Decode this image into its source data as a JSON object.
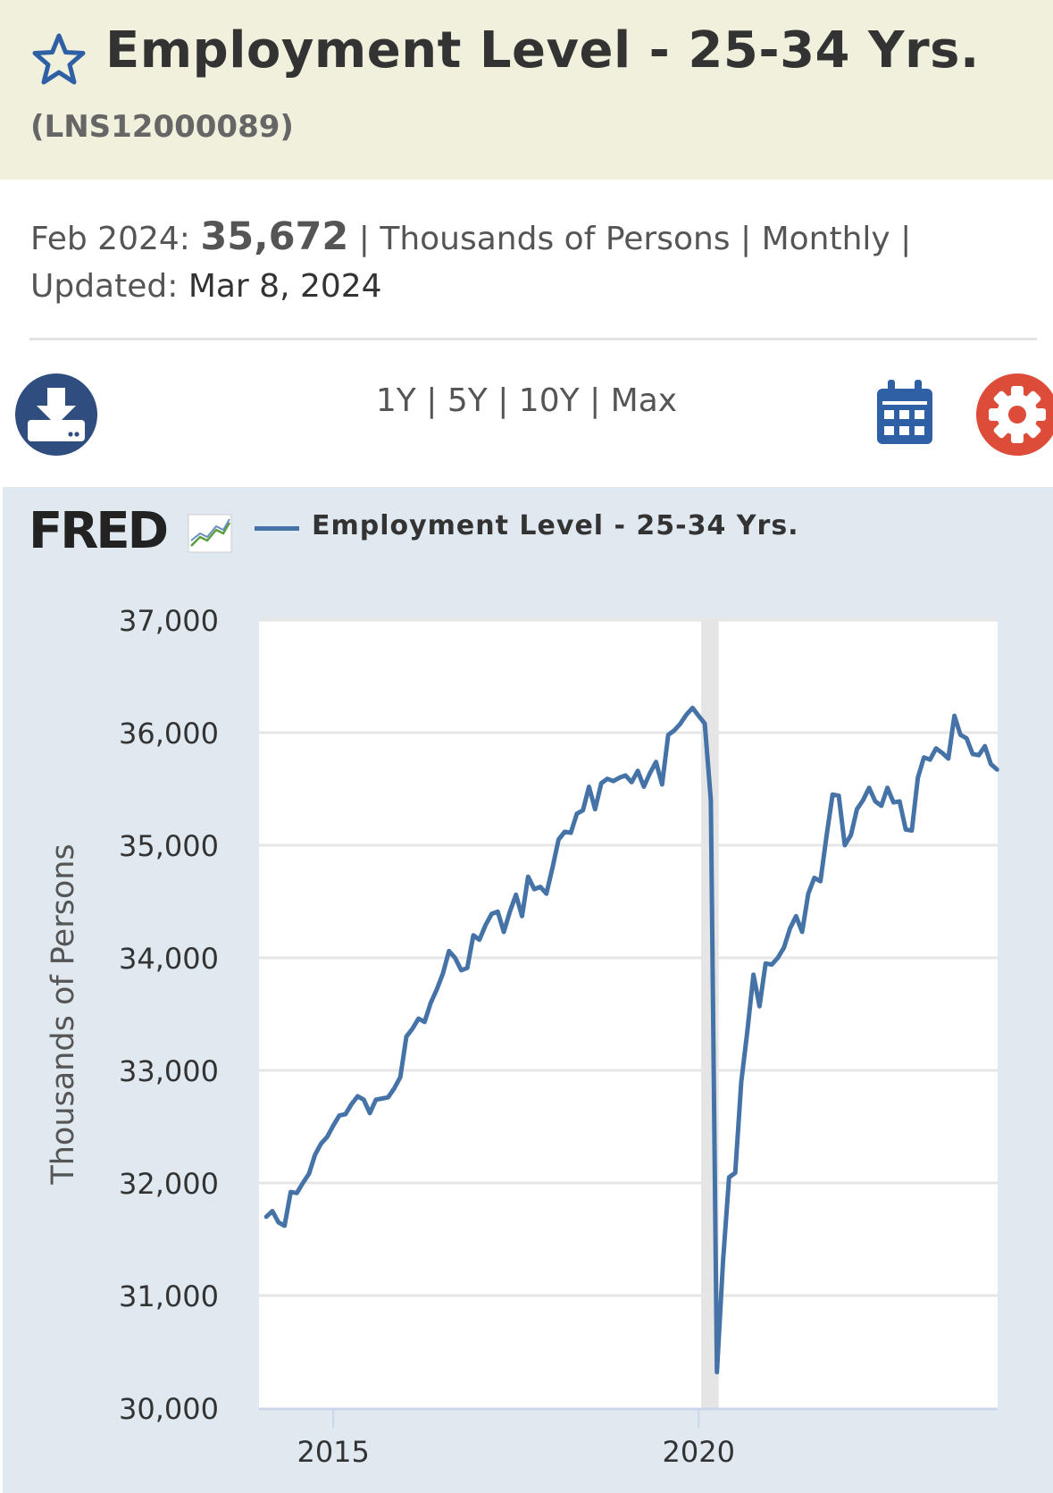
{
  "header": {
    "title": "Employment Level - 25-34 Yrs.",
    "series_id": "(LNS12000089)"
  },
  "summary": {
    "period_label": "Feb 2024:",
    "value": "35,672",
    "sep1": " | ",
    "units": "Thousands of Persons",
    "sep2": " | ",
    "frequency": "Monthly",
    "sep3": " |",
    "updated_label": "Updated:",
    "updated_value": "Mar 8, 2024"
  },
  "toolbar": {
    "ranges": [
      "1Y",
      "5Y",
      "10Y",
      "Max"
    ],
    "download_icon": "download-icon",
    "calendar_icon": "calendar-icon",
    "settings_icon": "gear-icon"
  },
  "colors": {
    "header_bg": "#f0f0dc",
    "chart_bg": "#e1e9f0",
    "series": "#4572a7",
    "download_btn": "#2f4d7e",
    "settings_btn": "#dd4b39"
  },
  "brand": {
    "logo": "FRED"
  },
  "chart_data": {
    "type": "line",
    "title": "",
    "legend": "top-left",
    "ylabel": "Thousands of Persons",
    "xlabel": "",
    "ylim": [
      30000,
      37000
    ],
    "xlim": [
      "2014-02",
      "2024-02"
    ],
    "yticks": [
      "30,000",
      "31,000",
      "32,000",
      "33,000",
      "34,000",
      "35,000",
      "36,000",
      "37,000"
    ],
    "yticks_values": [
      30000,
      31000,
      32000,
      33000,
      34000,
      35000,
      36000,
      37000
    ],
    "xticks": [
      "2015",
      "2020"
    ],
    "xticks_values": [
      "2015-01",
      "2020-01"
    ],
    "recession": [
      "2020-02",
      "2020-04"
    ],
    "grid": true,
    "series": [
      {
        "name": "Employment Level - 25-34 Yrs.",
        "x": [
          "2014-02",
          "2014-03",
          "2014-04",
          "2014-05",
          "2014-06",
          "2014-07",
          "2014-08",
          "2014-09",
          "2014-10",
          "2014-11",
          "2014-12",
          "2015-01",
          "2015-02",
          "2015-03",
          "2015-04",
          "2015-05",
          "2015-06",
          "2015-07",
          "2015-08",
          "2015-09",
          "2015-10",
          "2015-11",
          "2015-12",
          "2016-01",
          "2016-02",
          "2016-03",
          "2016-04",
          "2016-05",
          "2016-06",
          "2016-07",
          "2016-08",
          "2016-09",
          "2016-10",
          "2016-11",
          "2016-12",
          "2017-01",
          "2017-02",
          "2017-03",
          "2017-04",
          "2017-05",
          "2017-06",
          "2017-07",
          "2017-08",
          "2017-09",
          "2017-10",
          "2017-11",
          "2017-12",
          "2018-01",
          "2018-02",
          "2018-03",
          "2018-04",
          "2018-05",
          "2018-06",
          "2018-07",
          "2018-08",
          "2018-09",
          "2018-10",
          "2018-11",
          "2018-12",
          "2019-01",
          "2019-02",
          "2019-03",
          "2019-04",
          "2019-05",
          "2019-06",
          "2019-07",
          "2019-08",
          "2019-09",
          "2019-10",
          "2019-11",
          "2019-12",
          "2020-01",
          "2020-02",
          "2020-03",
          "2020-04",
          "2020-05",
          "2020-06",
          "2020-07",
          "2020-08",
          "2020-09",
          "2020-10",
          "2020-11",
          "2020-12",
          "2021-01",
          "2021-02",
          "2021-03",
          "2021-04",
          "2021-05",
          "2021-06",
          "2021-07",
          "2021-08",
          "2021-09",
          "2021-10",
          "2021-11",
          "2021-12",
          "2022-01",
          "2022-02",
          "2022-03",
          "2022-04",
          "2022-05",
          "2022-06",
          "2022-07",
          "2022-08",
          "2022-09",
          "2022-10",
          "2022-11",
          "2022-12",
          "2023-01",
          "2023-02",
          "2023-03",
          "2023-04",
          "2023-05",
          "2023-06",
          "2023-07",
          "2023-08",
          "2023-09",
          "2023-10",
          "2023-11",
          "2023-12",
          "2024-01",
          "2024-02"
        ],
        "values": [
          31700,
          31750,
          31650,
          31620,
          31920,
          31910,
          32000,
          32080,
          32250,
          32350,
          32410,
          32510,
          32600,
          32610,
          32700,
          32770,
          32740,
          32620,
          32740,
          32750,
          32760,
          32840,
          32940,
          33300,
          33370,
          33460,
          33430,
          33600,
          33720,
          33860,
          34060,
          34000,
          33890,
          33910,
          34200,
          34160,
          34290,
          34390,
          34410,
          34230,
          34410,
          34560,
          34370,
          34720,
          34610,
          34630,
          34570,
          34800,
          35050,
          35120,
          35110,
          35280,
          35310,
          35520,
          35320,
          35550,
          35590,
          35570,
          35600,
          35620,
          35560,
          35660,
          35520,
          35640,
          35740,
          35540,
          35980,
          36020,
          36080,
          36160,
          36220,
          36150,
          36080,
          35400,
          30320,
          31300,
          32050,
          32090,
          32900,
          33350,
          33850,
          33570,
          33950,
          33940,
          34000,
          34090,
          34260,
          34370,
          34230,
          34570,
          34710,
          34680,
          35080,
          35450,
          35440,
          35000,
          35090,
          35320,
          35400,
          35510,
          35390,
          35350,
          35510,
          35380,
          35390,
          35140,
          35130,
          35600,
          35780,
          35760,
          35860,
          35820,
          35770,
          36150,
          35980,
          35950,
          35810,
          35800,
          35880,
          35720,
          35672
        ]
      }
    ]
  }
}
